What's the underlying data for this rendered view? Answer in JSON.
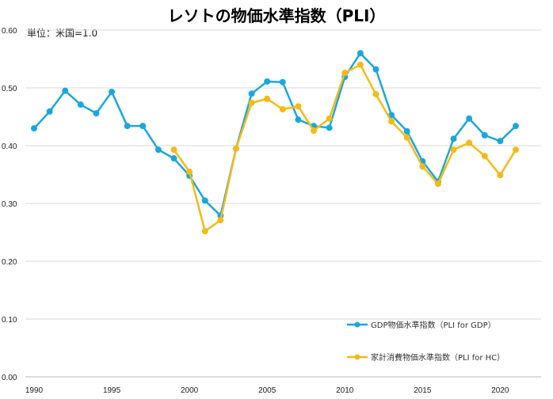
{
  "chart_data": {
    "type": "line",
    "title": "レソトの物価水準指数（PLI）",
    "unit_label": "単位：米国=1.0",
    "xlabel": "",
    "ylabel": "",
    "ylim": [
      0,
      0.6
    ],
    "yticks": [
      "0.00",
      "0.10",
      "0.20",
      "0.30",
      "0.40",
      "0.50",
      "0.60"
    ],
    "xticks": [
      "1990",
      "1995",
      "2000",
      "2005",
      "2010",
      "2015",
      "2020"
    ],
    "xlim": [
      1990,
      2021
    ],
    "grid": true,
    "legend_position": "bottom-right",
    "x": [
      1990,
      1991,
      1992,
      1993,
      1994,
      1995,
      1996,
      1997,
      1998,
      1999,
      2000,
      2001,
      2002,
      2003,
      2004,
      2005,
      2006,
      2007,
      2008,
      2009,
      2010,
      2011,
      2012,
      2013,
      2014,
      2015,
      2016,
      2017,
      2018,
      2019,
      2020,
      2021
    ],
    "series": [
      {
        "name": "GDP物価水準指数（PLI for GDP）",
        "color": "#1AA7DD",
        "values": [
          0.43,
          0.459,
          0.495,
          0.471,
          0.456,
          0.493,
          0.434,
          0.434,
          0.393,
          0.378,
          0.348,
          0.305,
          0.279,
          0.395,
          0.49,
          0.511,
          0.51,
          0.445,
          0.434,
          0.431,
          0.519,
          0.56,
          0.532,
          0.453,
          0.425,
          0.373,
          0.338,
          0.412,
          0.447,
          0.418,
          0.408,
          0.434
        ]
      },
      {
        "name": "家計消費物価水準指数（PLI for HC）",
        "color": "#F5BA16",
        "values": [
          null,
          null,
          null,
          null,
          null,
          null,
          null,
          null,
          null,
          0.393,
          0.355,
          0.252,
          0.271,
          0.395,
          0.474,
          0.481,
          0.463,
          0.468,
          0.426,
          0.447,
          0.526,
          0.54,
          0.489,
          0.442,
          0.414,
          0.364,
          0.334,
          0.393,
          0.405,
          0.382,
          0.349,
          0.393
        ]
      }
    ]
  }
}
